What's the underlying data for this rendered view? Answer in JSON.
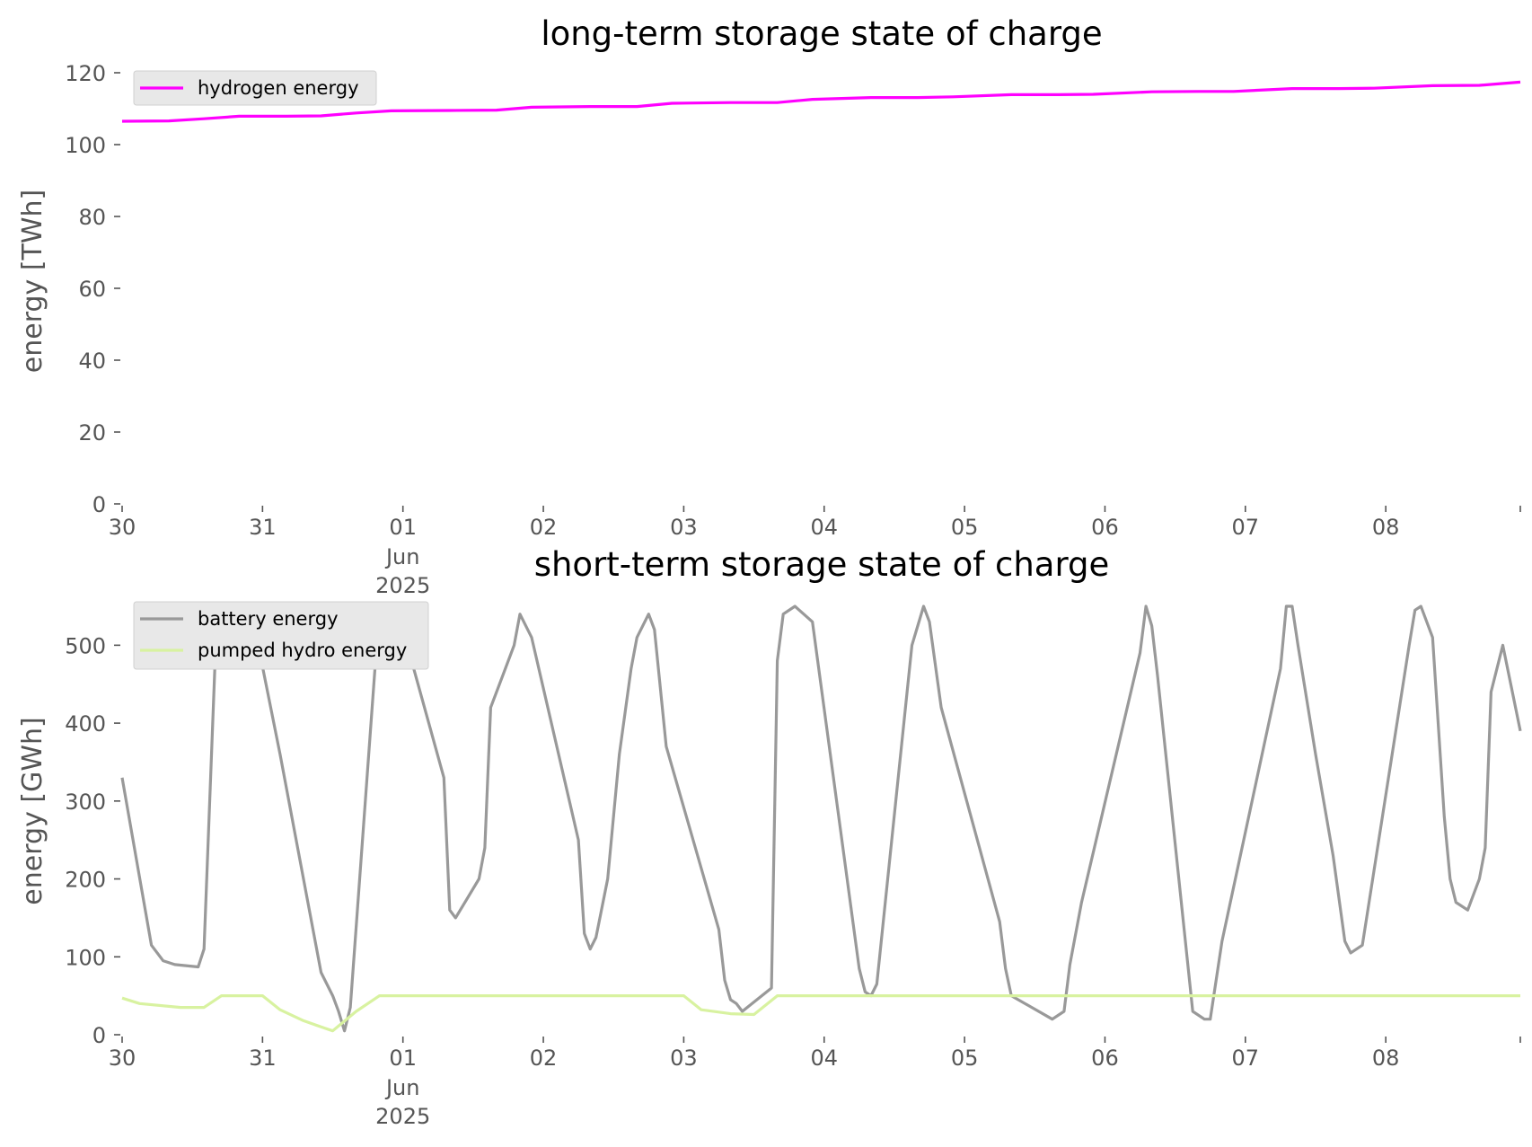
{
  "chart_data": [
    {
      "type": "line",
      "title": "long-term storage state of charge",
      "ylabel": "energy [TWh]",
      "xlabel": "",
      "ylim": [
        0,
        120
      ],
      "yticks": [
        "0",
        "20",
        "40",
        "60",
        "80",
        "100",
        "120"
      ],
      "xticks": [
        "30",
        "31",
        "01",
        "02",
        "03",
        "04",
        "05",
        "06",
        "07",
        "08"
      ],
      "xtick_sublabels": {
        "01": [
          "Jun",
          "2025"
        ]
      },
      "x_start": "2025-05-30",
      "x_end": "2025-06-08 23:00",
      "grid": false,
      "legend_position": "upper left",
      "series": [
        {
          "name": "hydrogen energy",
          "color": "#ff00ff",
          "x": [
            "2025-05-30 00:00",
            "2025-05-30 08:00",
            "2025-05-30 14:00",
            "2025-05-30 20:00",
            "2025-05-31 04:00",
            "2025-05-31 10:00",
            "2025-05-31 16:00",
            "2025-05-31 22:00",
            "2025-06-01 08:00",
            "2025-06-01 16:00",
            "2025-06-01 22:00",
            "2025-06-02 08:00",
            "2025-06-02 16:00",
            "2025-06-02 22:00",
            "2025-06-03 08:00",
            "2025-06-03 16:00",
            "2025-06-03 22:00",
            "2025-06-04 08:00",
            "2025-06-04 16:00",
            "2025-06-04 22:00",
            "2025-06-05 08:00",
            "2025-06-05 16:00",
            "2025-06-05 22:00",
            "2025-06-06 08:00",
            "2025-06-06 16:00",
            "2025-06-06 22:00",
            "2025-06-07 08:00",
            "2025-06-07 16:00",
            "2025-06-07 22:00",
            "2025-06-08 08:00",
            "2025-06-08 16:00",
            "2025-06-08 23:00"
          ],
          "values": [
            106.5,
            106.6,
            107.2,
            107.9,
            107.9,
            108.0,
            108.8,
            109.4,
            109.5,
            109.6,
            110.4,
            110.6,
            110.6,
            111.5,
            111.7,
            111.7,
            112.6,
            113.1,
            113.1,
            113.3,
            113.9,
            113.9,
            114.0,
            114.7,
            114.8,
            114.8,
            115.6,
            115.6,
            115.7,
            116.4,
            116.5,
            117.4
          ]
        }
      ]
    },
    {
      "type": "line",
      "title": "short-term storage state of charge",
      "ylabel": "energy [GWh]",
      "xlabel": "",
      "ylim": [
        0,
        550
      ],
      "yticks": [
        "0",
        "100",
        "200",
        "300",
        "400",
        "500"
      ],
      "xticks": [
        "30",
        "31",
        "01",
        "02",
        "03",
        "04",
        "05",
        "06",
        "07",
        "08"
      ],
      "xtick_sublabels": {
        "01": [
          "Jun",
          "2025"
        ]
      },
      "x_start": "2025-05-30",
      "x_end": "2025-06-08 23:00",
      "grid": false,
      "legend_position": "upper left",
      "series": [
        {
          "name": "battery energy",
          "color": "#999999",
          "x": [
            "2025-05-30 00:00",
            "2025-05-30 05:00",
            "2025-05-30 07:00",
            "2025-05-30 09:00",
            "2025-05-30 13:00",
            "2025-05-30 14:00",
            "2025-05-30 16:00",
            "2025-05-30 18:00",
            "2025-05-30 21:00",
            "2025-05-30 23:00",
            "2025-05-31 03:00",
            "2025-05-31 10:00",
            "2025-05-31 12:00",
            "2025-05-31 13:00",
            "2025-05-31 14:00",
            "2025-05-31 15:00",
            "2025-05-31 20:00",
            "2025-05-31 22:00",
            "2025-06-01 00:00",
            "2025-06-01 07:00",
            "2025-06-01 08:00",
            "2025-06-01 09:00",
            "2025-06-01 11:00",
            "2025-06-01 13:00",
            "2025-06-01 14:00",
            "2025-06-01 15:00",
            "2025-06-01 17:00",
            "2025-06-01 19:00",
            "2025-06-01 20:00",
            "2025-06-01 22:00",
            "2025-06-02 06:00",
            "2025-06-02 07:00",
            "2025-06-02 08:00",
            "2025-06-02 09:00",
            "2025-06-02 11:00",
            "2025-06-02 13:00",
            "2025-06-02 15:00",
            "2025-06-02 16:00",
            "2025-06-02 18:00",
            "2025-06-02 19:00",
            "2025-06-02 21:00",
            "2025-06-03 06:00",
            "2025-06-03 07:00",
            "2025-06-03 08:00",
            "2025-06-03 09:00",
            "2025-06-03 10:00",
            "2025-06-03 15:00",
            "2025-06-03 16:00",
            "2025-06-03 17:00",
            "2025-06-03 19:00",
            "2025-06-03 22:00",
            "2025-06-04 06:00",
            "2025-06-04 07:00",
            "2025-06-04 08:00",
            "2025-06-04 09:00",
            "2025-06-04 15:00",
            "2025-06-04 17:00",
            "2025-06-04 18:00",
            "2025-06-04 20:00",
            "2025-06-05 06:00",
            "2025-06-05 07:00",
            "2025-06-05 08:00",
            "2025-06-05 15:00",
            "2025-06-05 17:00",
            "2025-06-05 18:00",
            "2025-06-05 20:00",
            "2025-06-06 06:00",
            "2025-06-06 07:00",
            "2025-06-06 08:00",
            "2025-06-06 09:00",
            "2025-06-06 15:00",
            "2025-06-06 17:00",
            "2025-06-06 18:00",
            "2025-06-06 20:00",
            "2025-06-07 06:00",
            "2025-06-07 07:00",
            "2025-06-07 08:00",
            "2025-06-07 09:00",
            "2025-06-07 12:00",
            "2025-06-07 15:00",
            "2025-06-07 17:00",
            "2025-06-07 18:00",
            "2025-06-07 20:00",
            "2025-06-08 04:00",
            "2025-06-08 05:00",
            "2025-06-08 06:00",
            "2025-06-08 08:00",
            "2025-06-08 10:00",
            "2025-06-08 11:00",
            "2025-06-08 12:00",
            "2025-06-08 14:00",
            "2025-06-08 16:00",
            "2025-06-08 17:00",
            "2025-06-08 18:00",
            "2025-06-08 20:00",
            "2025-06-08 23:00"
          ],
          "values": [
            330,
            115,
            95,
            90,
            87,
            110,
            500,
            530,
            550,
            510,
            360,
            80,
            50,
            30,
            5,
            35,
            550,
            550,
            520,
            330,
            160,
            150,
            175,
            200,
            240,
            420,
            460,
            500,
            540,
            510,
            250,
            130,
            110,
            125,
            200,
            360,
            470,
            510,
            540,
            520,
            370,
            135,
            70,
            45,
            40,
            30,
            60,
            480,
            540,
            550,
            530,
            85,
            55,
            50,
            65,
            500,
            550,
            530,
            420,
            145,
            85,
            50,
            20,
            30,
            90,
            170,
            490,
            550,
            525,
            460,
            30,
            20,
            20,
            120,
            470,
            550,
            550,
            500,
            360,
            230,
            120,
            105,
            115,
            500,
            545,
            550,
            510,
            280,
            200,
            170,
            160,
            200,
            240,
            440,
            500,
            390
          ]
        },
        {
          "name": "pumped hydro energy",
          "color": "#d8f2a0",
          "x": [
            "2025-05-30 00:00",
            "2025-05-30 03:00",
            "2025-05-30 10:00",
            "2025-05-30 14:00",
            "2025-05-30 17:00",
            "2025-05-31 00:00",
            "2025-05-31 03:00",
            "2025-05-31 07:00",
            "2025-05-31 10:00",
            "2025-05-31 12:00",
            "2025-05-31 16:00",
            "2025-05-31 20:00",
            "2025-06-03 00:00",
            "2025-06-03 03:00",
            "2025-06-03 08:00",
            "2025-06-03 12:00",
            "2025-06-03 16:00",
            "2025-06-08 23:00"
          ],
          "values": [
            47,
            40,
            35,
            35,
            50,
            50,
            32,
            18,
            10,
            5,
            30,
            50,
            50,
            32,
            27,
            26,
            50,
            50
          ]
        }
      ]
    }
  ]
}
